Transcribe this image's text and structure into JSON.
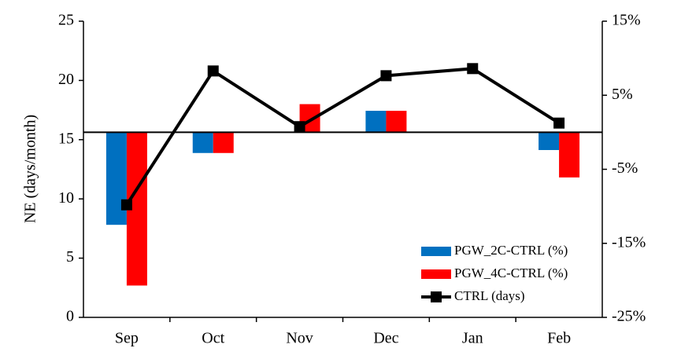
{
  "chart_data": {
    "type": "combo",
    "y_label": "NE (days/month)",
    "categories": [
      "Sep",
      "Oct",
      "Nov",
      "Dec",
      "Jan",
      "Feb"
    ],
    "series": [
      {
        "name": "PGW_2C-CTRL (%)",
        "type": "bar",
        "axis": "y2",
        "color": "#0070c0",
        "values": [
          -12.5,
          -2.8,
          0,
          2.9,
          0,
          -2.4
        ]
      },
      {
        "name": "PGW_4C-CTRL (%)",
        "type": "bar",
        "axis": "y2",
        "color": "#ff0000",
        "values": [
          -20.7,
          -2.8,
          3.8,
          2.9,
          0,
          -6.1
        ]
      },
      {
        "name": "CTRL (days)",
        "type": "line",
        "color": "#000000",
        "values": [
          9.5,
          20.8,
          16.1,
          20.4,
          21.0,
          16.4
        ]
      }
    ],
    "ylim": [
      0,
      25
    ],
    "yticks": [
      0,
      5,
      10,
      15,
      20,
      25
    ],
    "y2lim": [
      -25,
      15
    ],
    "y2ticks": [
      {
        "value": -25,
        "label": "-25%"
      },
      {
        "value": -15,
        "label": "-15%"
      },
      {
        "value": -5,
        "label": "-5%"
      },
      {
        "value": 5,
        "label": "5%"
      },
      {
        "value": 15,
        "label": "15%"
      }
    ],
    "legend": "lower right"
  }
}
